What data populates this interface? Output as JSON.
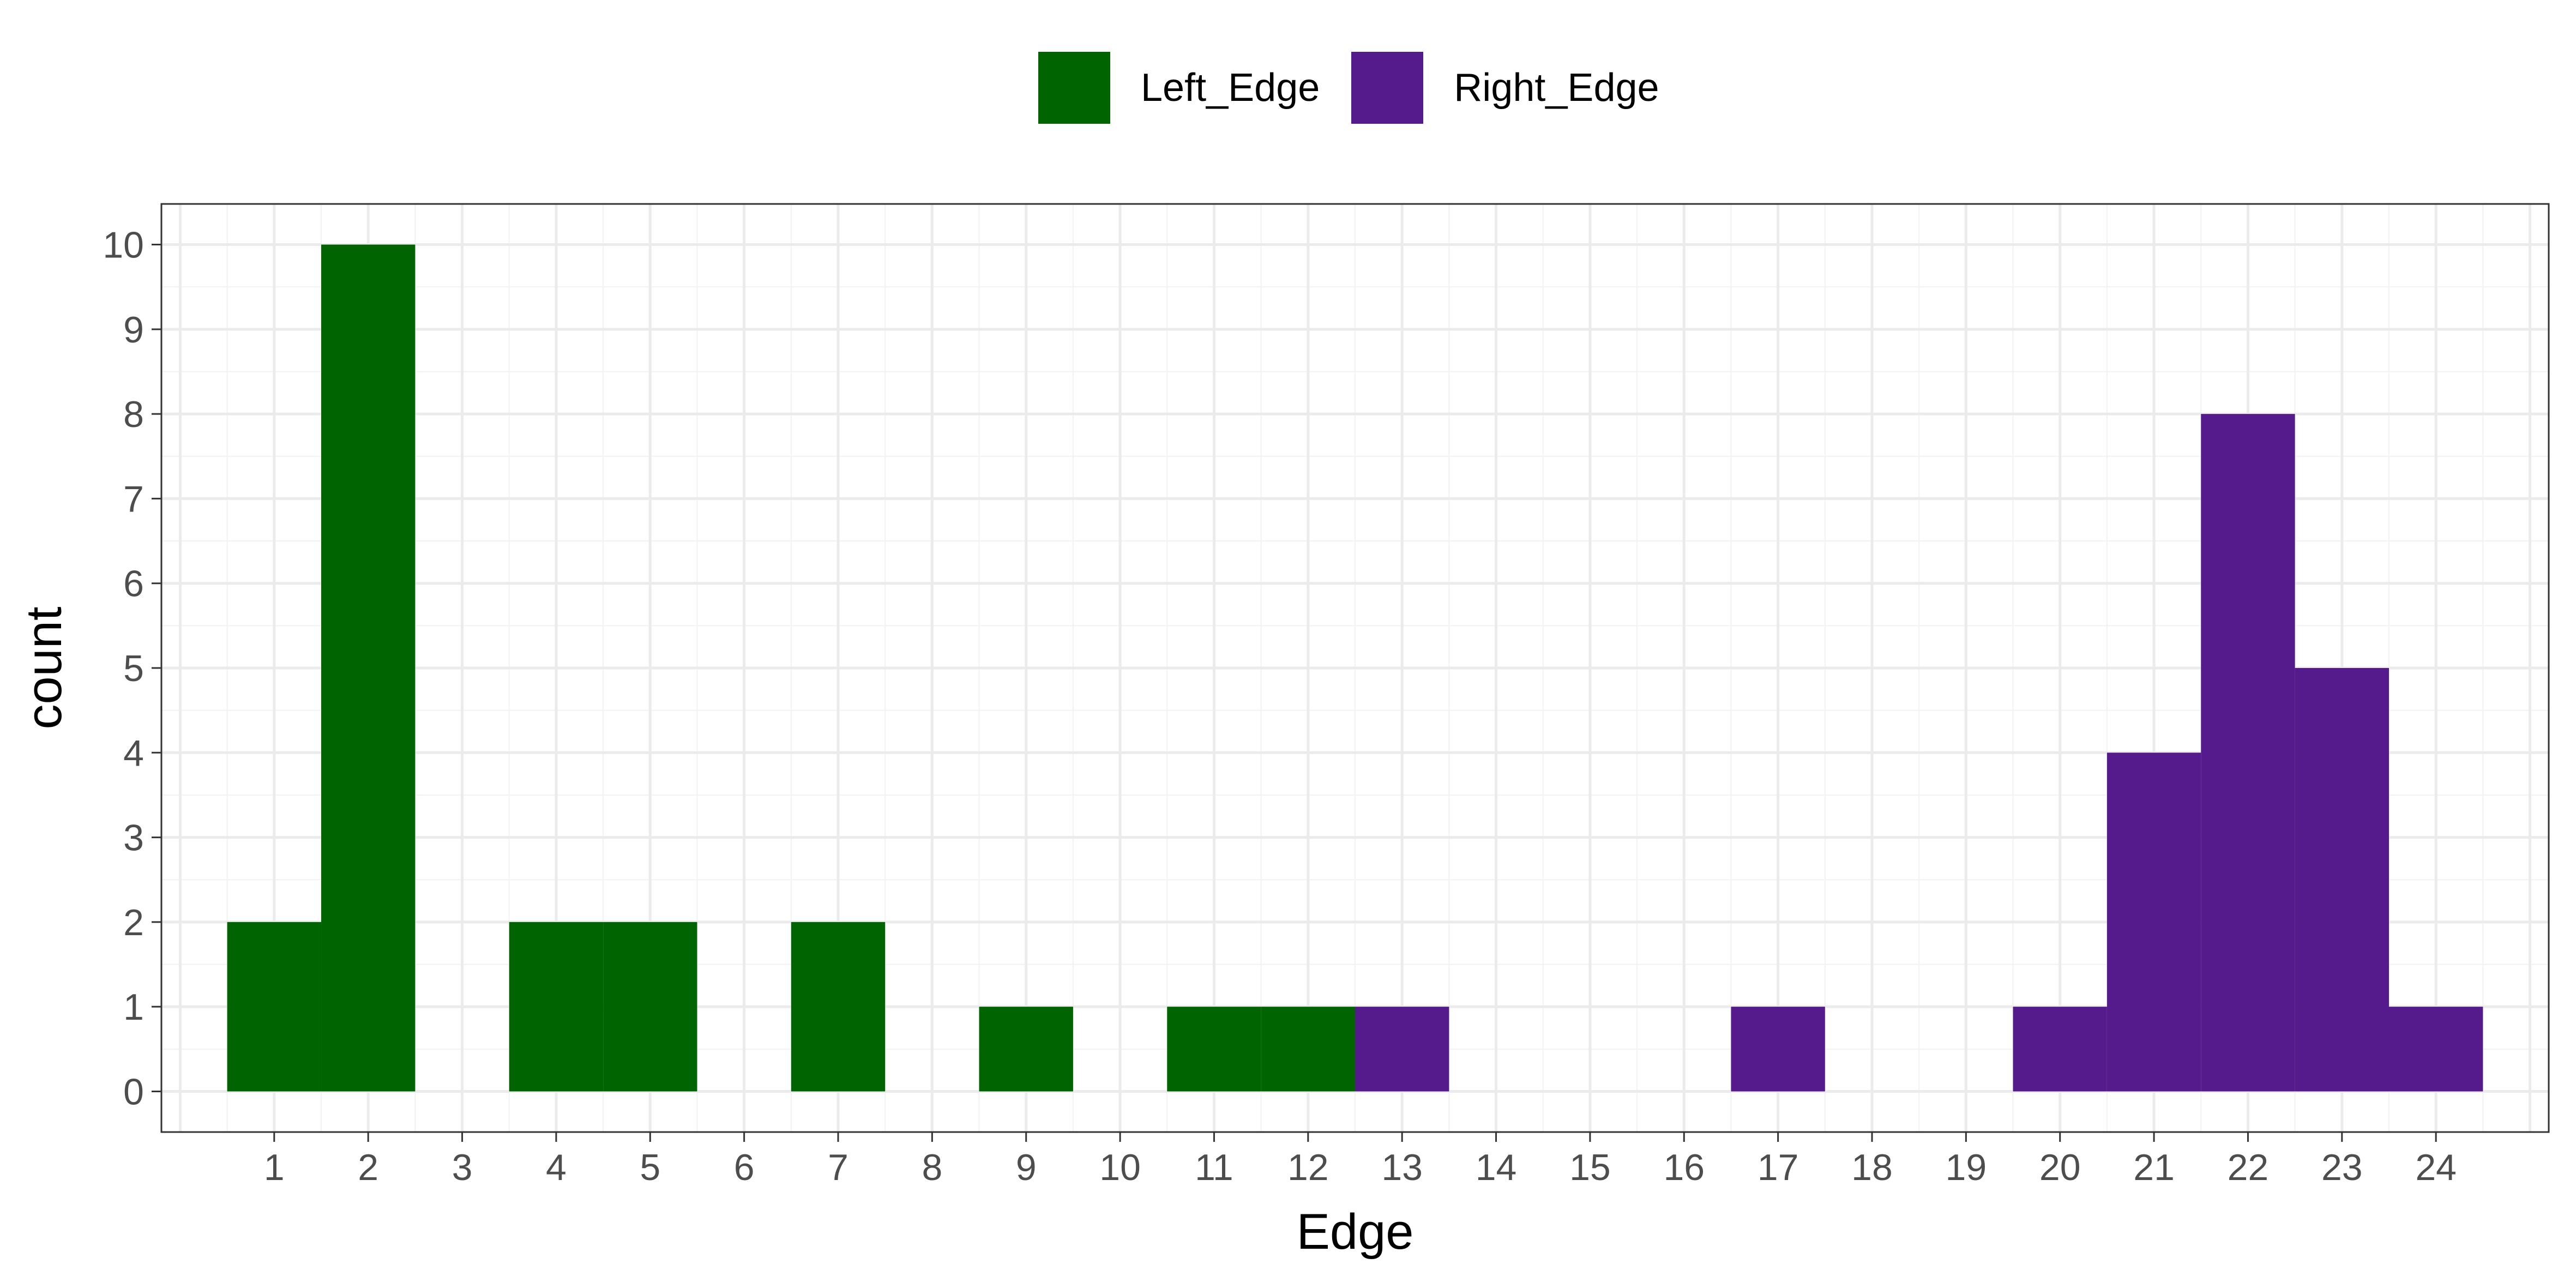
{
  "legend": {
    "items": [
      {
        "label": "Left_Edge",
        "color": "#006400"
      },
      {
        "label": "Right_Edge",
        "color": "#551A8B"
      }
    ]
  },
  "chart_data": {
    "type": "bar",
    "xlabel": "Edge",
    "ylabel": "count",
    "xlim": [
      -0.2,
      25.2
    ],
    "ylim": [
      -0.48,
      10.48
    ],
    "x_ticks": [
      1,
      2,
      3,
      4,
      5,
      6,
      7,
      8,
      9,
      10,
      11,
      12,
      13,
      14,
      15,
      16,
      17,
      18,
      19,
      20,
      21,
      22,
      23,
      24
    ],
    "y_ticks": [
      0,
      1,
      2,
      3,
      4,
      5,
      6,
      7,
      8,
      9,
      10
    ],
    "grid": true,
    "legend_position": "top",
    "series": [
      {
        "name": "Left_Edge",
        "color": "#006400",
        "x": [
          1,
          2,
          4,
          5,
          7,
          9,
          11,
          12
        ],
        "values": [
          2,
          10,
          2,
          2,
          2,
          1,
          1,
          1
        ]
      },
      {
        "name": "Right_Edge",
        "color": "#551A8B",
        "x": [
          13,
          17,
          20,
          21,
          22,
          23,
          24
        ],
        "values": [
          1,
          1,
          1,
          4,
          8,
          5,
          1
        ]
      }
    ]
  }
}
